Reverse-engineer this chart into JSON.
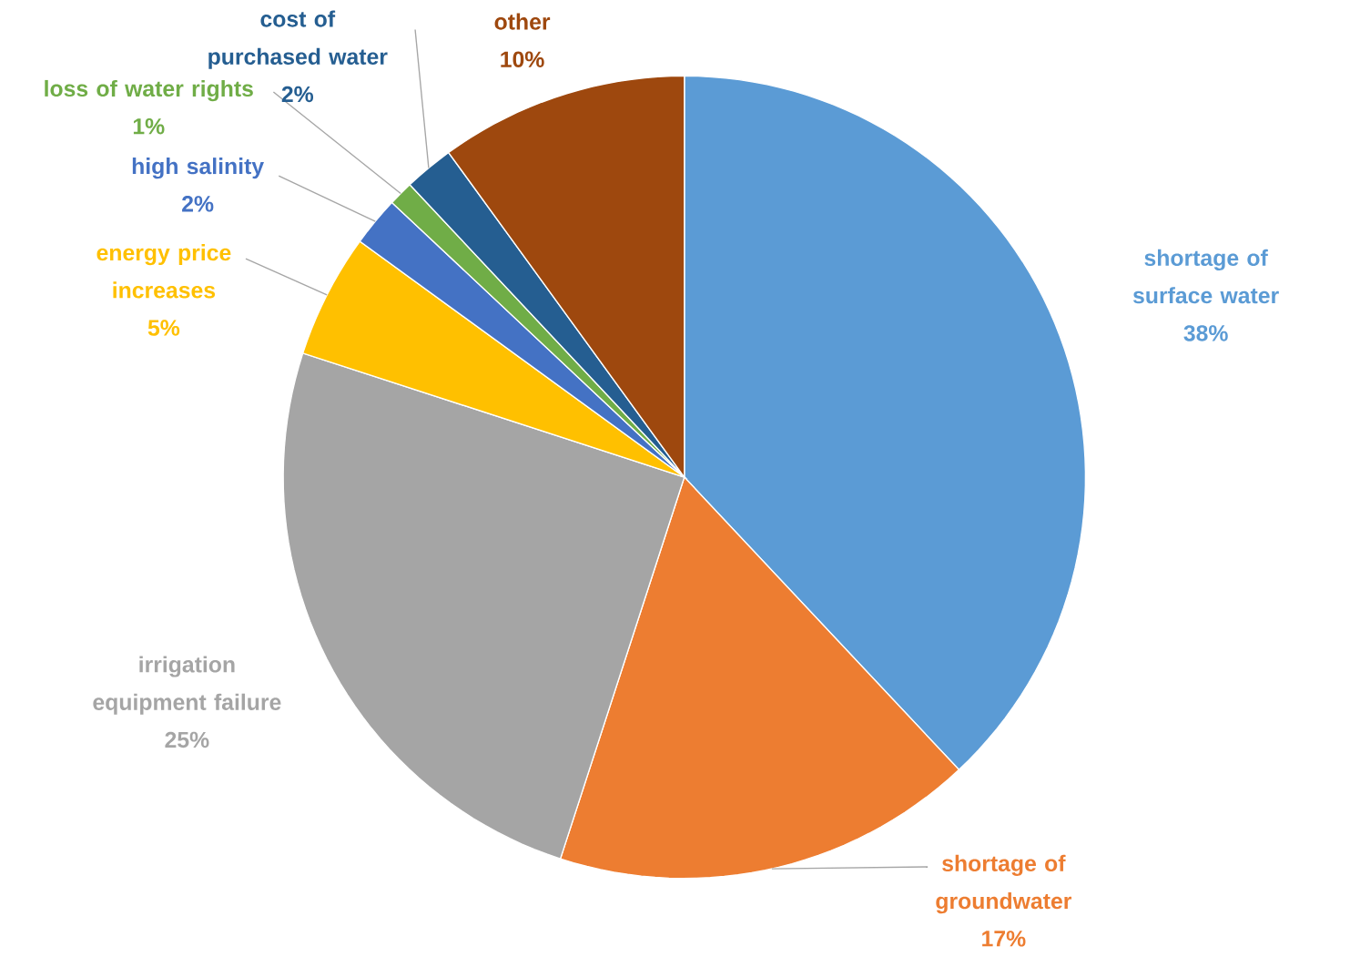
{
  "chart_data": {
    "type": "pie",
    "categories": [
      "shortage of surface water",
      "shortage of groundwater",
      "irrigation equipment failure",
      "energy price increases",
      "high salinity",
      "loss of water rights",
      "cost of purchased water",
      "other"
    ],
    "values": [
      38,
      17,
      25,
      5,
      2,
      1,
      2,
      10
    ],
    "value_labels": [
      "38%",
      "17%",
      "25%",
      "5%",
      "2%",
      "1%",
      "2%",
      "10%"
    ],
    "colors": [
      "#5b9bd5",
      "#ed7d31",
      "#a5a5a5",
      "#ffc000",
      "#4472c4",
      "#70ad47",
      "#255e91",
      "#9e480e"
    ]
  }
}
